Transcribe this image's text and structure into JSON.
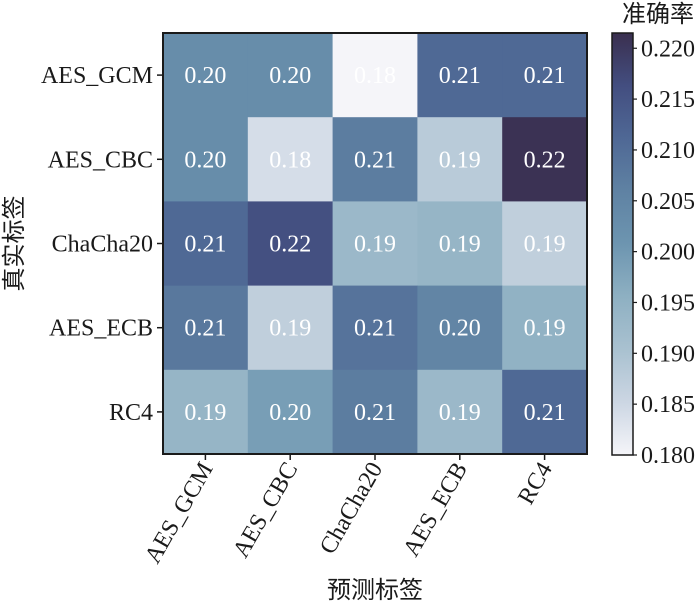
{
  "chart_data": {
    "type": "heatmap",
    "title": "",
    "xlabel": "预测标签",
    "ylabel": "真实标签",
    "x_categories": [
      "AES_GCM",
      "AES_CBC",
      "ChaCha20",
      "AES_ECB",
      "RC4"
    ],
    "y_categories": [
      "AES_GCM",
      "AES_CBC",
      "ChaCha20",
      "AES_ECB",
      "RC4"
    ],
    "values": [
      [
        0.203,
        0.203,
        0.18,
        0.211,
        0.211
      ],
      [
        0.203,
        0.184,
        0.207,
        0.188,
        0.221
      ],
      [
        0.211,
        0.216,
        0.193,
        0.194,
        0.187
      ],
      [
        0.208,
        0.187,
        0.209,
        0.205,
        0.195
      ],
      [
        0.194,
        0.199,
        0.207,
        0.193,
        0.211
      ]
    ],
    "labels": [
      [
        "0.20",
        "0.20",
        "0.18",
        "0.21",
        "0.21"
      ],
      [
        "0.20",
        "0.18",
        "0.21",
        "0.19",
        "0.22"
      ],
      [
        "0.21",
        "0.22",
        "0.19",
        "0.19",
        "0.19"
      ],
      [
        "0.21",
        "0.19",
        "0.21",
        "0.20",
        "0.19"
      ],
      [
        "0.19",
        "0.20",
        "0.21",
        "0.19",
        "0.21"
      ]
    ],
    "colorbar": {
      "title": "准确率",
      "range": [
        0.18,
        0.2215
      ],
      "ticks": [
        "0.180",
        "0.185",
        "0.190",
        "0.195",
        "0.200",
        "0.205",
        "0.210",
        "0.215",
        "0.220"
      ],
      "colormap": [
        "#f5f5f9",
        "#ccd6e3",
        "#a9c1d0",
        "#8eb0c2",
        "#6d95b0",
        "#5f82a3",
        "#4f6895",
        "#434e80",
        "#3a2f4f"
      ]
    }
  }
}
